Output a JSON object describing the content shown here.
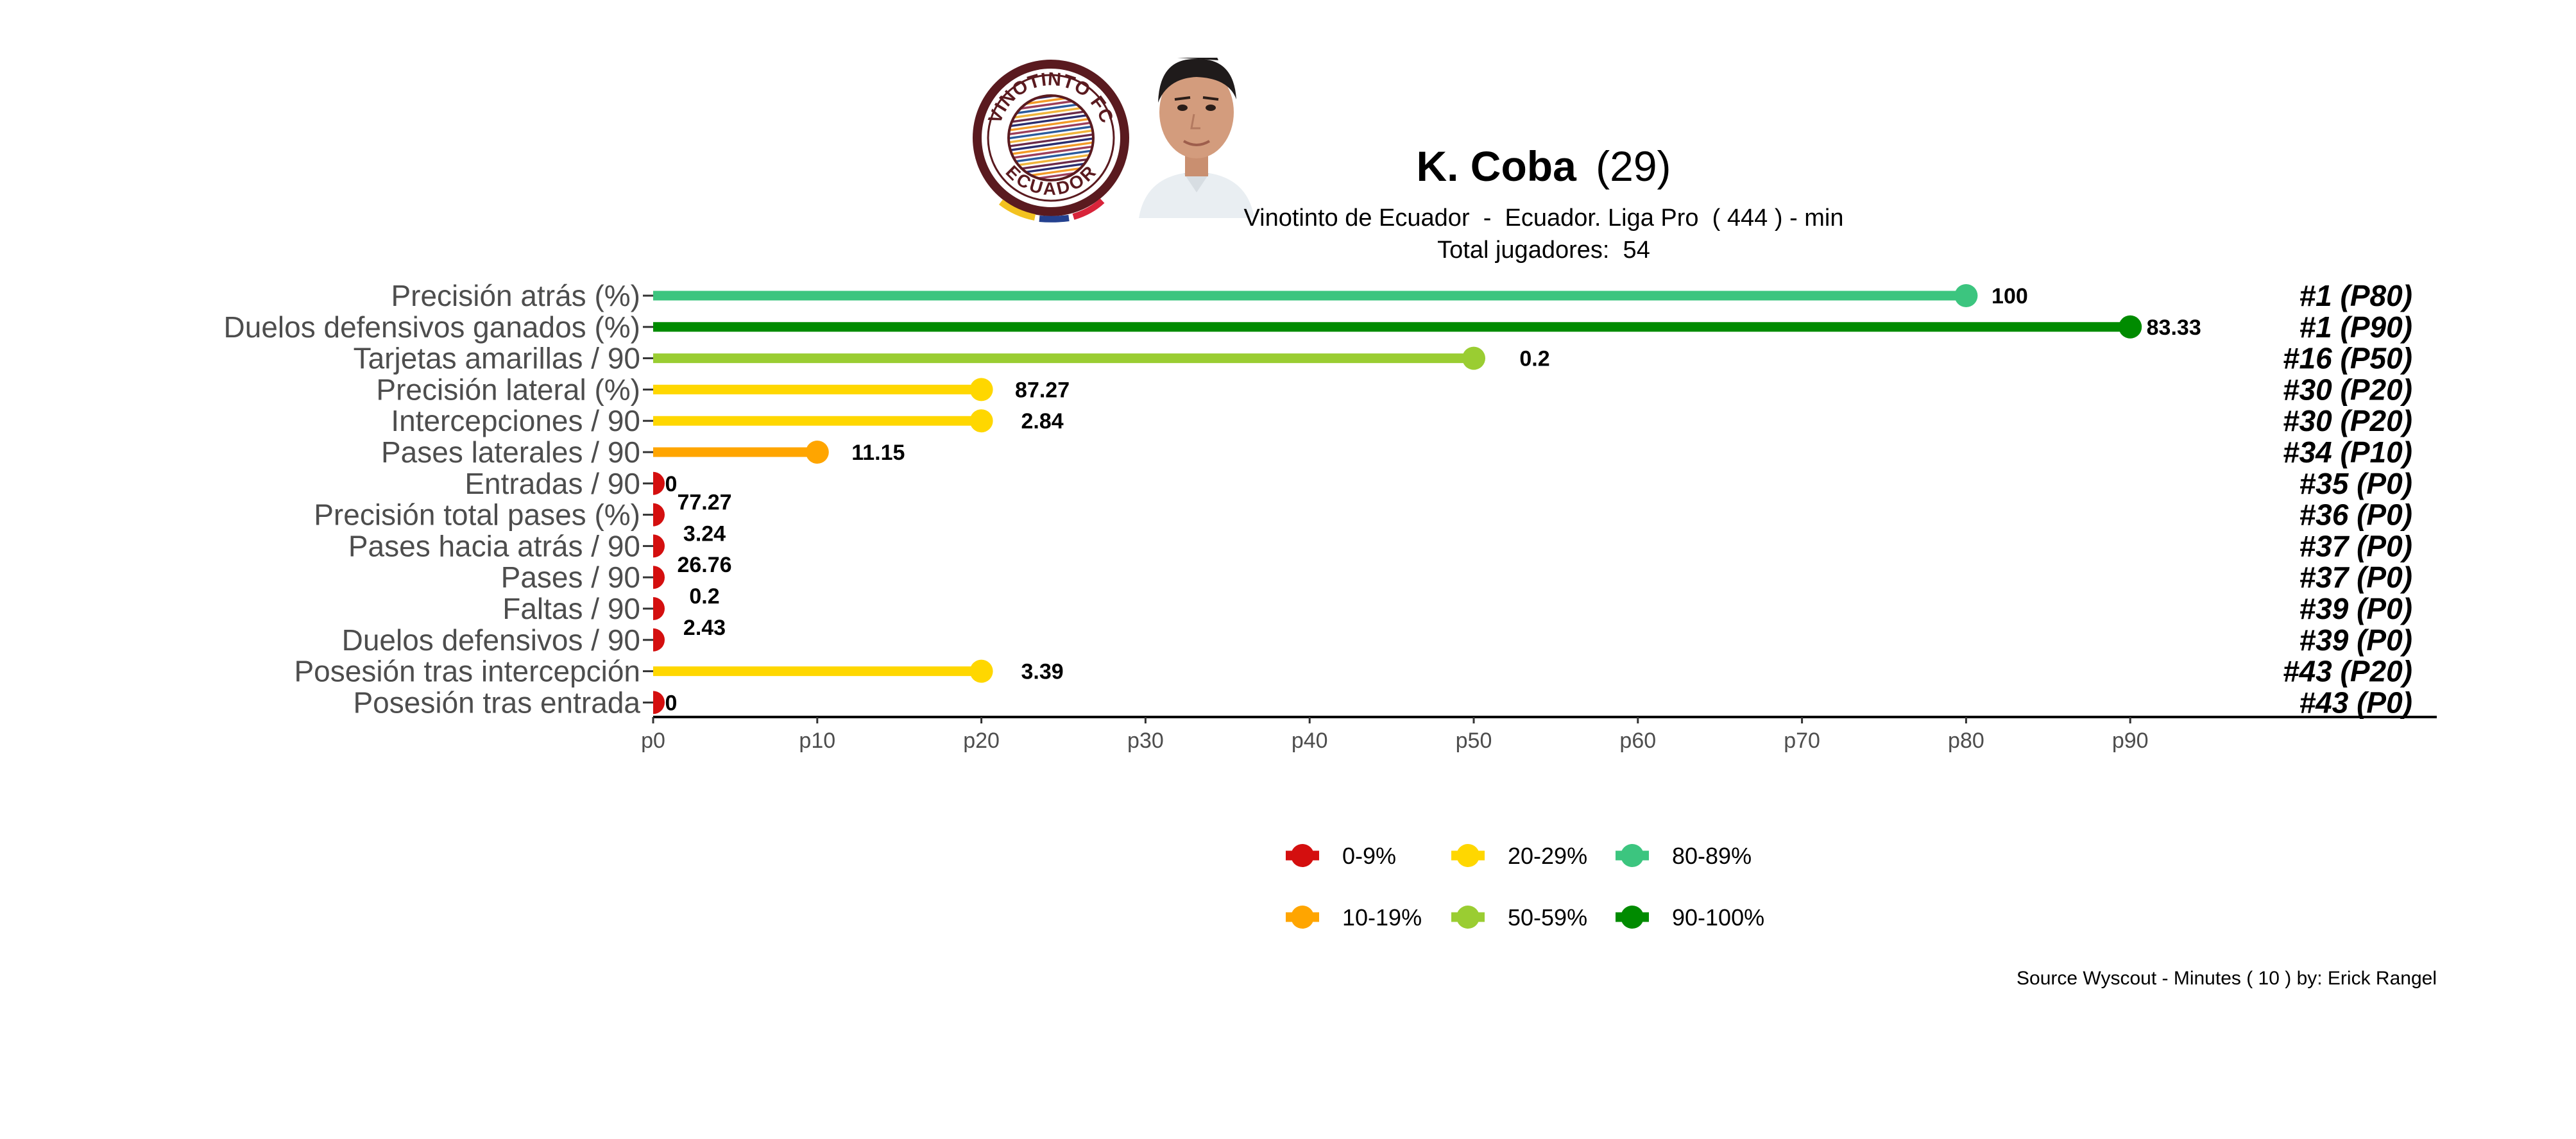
{
  "header": {
    "player_name": "K. Coba",
    "player_age": "(29)",
    "subtitle": "Vinotinto de Ecuador  -  Ecuador. Liga Pro  ( 444 ) - min",
    "total_players": "Total jugadores:  54",
    "club_logo_text_top": "VINOTINTO FC",
    "club_logo_text_bottom": "ECUADOR"
  },
  "footer": {
    "source": "Source Wyscout - Minutes ( 10 ) by: Erick Rangel"
  },
  "colors": {
    "p0_9": "#d40f0f",
    "p10_19": "#ffa500",
    "p20_29": "#ffd700",
    "p50_59": "#9acd32",
    "p80_89": "#3cc57f",
    "p90_100": "#008b00",
    "club_maroon": "#5a1a1f"
  },
  "chart_data": {
    "type": "lollipop-bar",
    "title": "",
    "xlabel": "",
    "ylabel": "",
    "xlim": [
      0,
      100
    ],
    "x_ticks": [
      "p0",
      "p10",
      "p20",
      "p30",
      "p40",
      "p50",
      "p60",
      "p70",
      "p80",
      "p90"
    ],
    "x_tick_values": [
      0,
      10,
      20,
      30,
      40,
      50,
      60,
      70,
      80,
      90
    ],
    "grid": false,
    "legend_position": "bottom-center",
    "legend": [
      {
        "label": "0-9%",
        "color_key": "p0_9"
      },
      {
        "label": "20-29%",
        "color_key": "p20_29"
      },
      {
        "label": "80-89%",
        "color_key": "p80_89"
      },
      {
        "label": "10-19%",
        "color_key": "p10_19"
      },
      {
        "label": "50-59%",
        "color_key": "p50_59"
      },
      {
        "label": "90-100%",
        "color_key": "p90_100"
      }
    ],
    "rows": [
      {
        "metric": "Precisión atrás (%)",
        "percentile": 80,
        "value_label": "100",
        "rank_label": "#1 (P80)",
        "color_key": "p80_89"
      },
      {
        "metric": "Duelos defensivos ganados (%)",
        "percentile": 90,
        "value_label": "83.33",
        "rank_label": "#1 (P90)",
        "color_key": "p90_100"
      },
      {
        "metric": "Tarjetas amarillas / 90",
        "percentile": 50,
        "value_label": "0.2",
        "rank_label": "#16 (P50)",
        "color_key": "p50_59"
      },
      {
        "metric": "Precisión lateral (%)",
        "percentile": 20,
        "value_label": "87.27",
        "rank_label": "#30 (P20)",
        "color_key": "p20_29"
      },
      {
        "metric": "Intercepciones / 90",
        "percentile": 20,
        "value_label": "2.84",
        "rank_label": "#30 (P20)",
        "color_key": "p20_29"
      },
      {
        "metric": "Pases laterales / 90",
        "percentile": 10,
        "value_label": "11.15",
        "rank_label": "#34 (P10)",
        "color_key": "p10_19"
      },
      {
        "metric": "Entradas / 90",
        "percentile": 0,
        "value_label": "0",
        "rank_label": "#35 (P0)",
        "color_key": "p0_9"
      },
      {
        "metric": "Precisión total pases (%)",
        "percentile": 0,
        "value_label": "77.27",
        "rank_label": "#36 (P0)",
        "color_key": "p0_9"
      },
      {
        "metric": "Pases hacia atrás / 90",
        "percentile": 0,
        "value_label": "3.24",
        "rank_label": "#37 (P0)",
        "color_key": "p0_9"
      },
      {
        "metric": "Pases / 90",
        "percentile": 0,
        "value_label": "26.76",
        "rank_label": "#37 (P0)",
        "color_key": "p0_9"
      },
      {
        "metric": "Faltas / 90",
        "percentile": 0,
        "value_label": "0.2",
        "rank_label": "#39 (P0)",
        "color_key": "p0_9"
      },
      {
        "metric": "Duelos defensivos / 90",
        "percentile": 0,
        "value_label": "2.43",
        "rank_label": "#39 (P0)",
        "color_key": "p0_9"
      },
      {
        "metric": "Posesión tras intercepción",
        "percentile": 20,
        "value_label": "3.39",
        "rank_label": "#43 (P20)",
        "color_key": "p20_29"
      },
      {
        "metric": "Posesión tras entrada",
        "percentile": 0,
        "value_label": "0",
        "rank_label": "#43 (P0)",
        "color_key": "p0_9"
      }
    ]
  }
}
